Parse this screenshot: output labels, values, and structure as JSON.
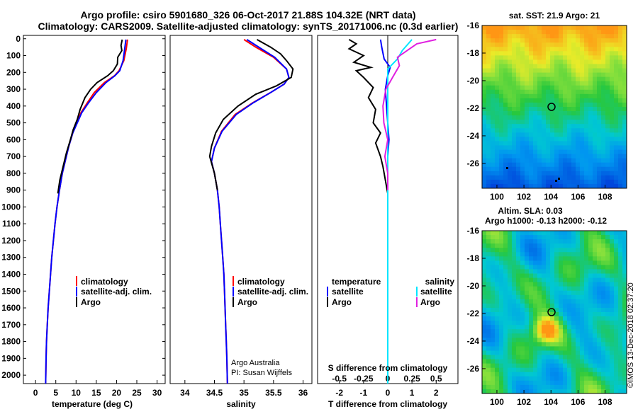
{
  "header": {
    "title_line1": "Argo profile: csiro 5901680_326 06-Oct-2017 21.88S 104.32E (NRT data)",
    "title_line2": "Climatology: CARS2009. Satellite-adjusted climatology: synTS_20171006.nc (0.3d earlier)"
  },
  "colors": {
    "climatology": "#ff0000",
    "satellite": "#0000ff",
    "argo": "#000000",
    "sat_diff": "#00e5ff",
    "argo_s_diff": "#e020e0"
  },
  "depth_axis": {
    "ticks": [
      "0",
      "100",
      "200",
      "300",
      "400",
      "500",
      "600",
      "700",
      "800",
      "900",
      "1000",
      "1100",
      "1200",
      "1300",
      "1400",
      "1500",
      "1600",
      "1700",
      "1800",
      "1900",
      "2000"
    ],
    "ylim": [
      2050,
      -20
    ]
  },
  "chart_data": [
    {
      "type": "line",
      "xlabel": "temperature (deg C)",
      "xticks": [
        "0",
        "5",
        "10",
        "15",
        "20",
        "25",
        "30"
      ],
      "xlim": [
        -3,
        32
      ],
      "legend": {
        "placement": "lower-middle",
        "labels": [
          "climatology",
          "satellite-adj. clim.",
          "Argo"
        ]
      },
      "series": [
        {
          "name": "climatology",
          "points": [
            [
              22.7,
              5
            ],
            [
              22.4,
              60
            ],
            [
              21.8,
              130
            ],
            [
              20.6,
              190
            ],
            [
              19.5,
              220
            ],
            [
              17.0,
              260
            ],
            [
              14.5,
              320
            ],
            [
              12.8,
              380
            ],
            [
              11.2,
              440
            ],
            [
              10.2,
              500
            ],
            [
              9.2,
              560
            ],
            [
              8.2,
              640
            ],
            [
              7.4,
              720
            ],
            [
              6.6,
              800
            ],
            [
              5.9,
              900
            ],
            [
              5.3,
              1000
            ],
            [
              4.8,
              1100
            ],
            [
              4.4,
              1200
            ],
            [
              4.0,
              1300
            ],
            [
              3.7,
              1400
            ],
            [
              3.4,
              1500
            ],
            [
              3.1,
              1600
            ],
            [
              2.9,
              1700
            ],
            [
              2.7,
              1800
            ],
            [
              2.6,
              1900
            ],
            [
              2.5,
              2050
            ]
          ]
        },
        {
          "name": "satellite-adj. clim.",
          "points": [
            [
              22.3,
              5
            ],
            [
              22.0,
              60
            ],
            [
              21.6,
              130
            ],
            [
              20.8,
              190
            ],
            [
              19.6,
              220
            ],
            [
              17.4,
              260
            ],
            [
              15.0,
              320
            ],
            [
              13.1,
              380
            ],
            [
              11.4,
              440
            ],
            [
              10.3,
              500
            ],
            [
              9.2,
              560
            ],
            [
              8.2,
              640
            ],
            [
              7.4,
              720
            ],
            [
              6.6,
              800
            ],
            [
              5.9,
              900
            ],
            [
              5.3,
              1000
            ],
            [
              4.8,
              1100
            ],
            [
              4.4,
              1200
            ],
            [
              4.0,
              1300
            ],
            [
              3.7,
              1400
            ],
            [
              3.4,
              1500
            ],
            [
              3.1,
              1600
            ],
            [
              2.9,
              1700
            ],
            [
              2.7,
              1800
            ],
            [
              2.6,
              1900
            ],
            [
              2.5,
              2050
            ]
          ]
        },
        {
          "name": "Argo",
          "points": [
            [
              21.4,
              5
            ],
            [
              21.1,
              40
            ],
            [
              21.3,
              70
            ],
            [
              20.3,
              110
            ],
            [
              20.2,
              150
            ],
            [
              19.2,
              190
            ],
            [
              17.8,
              220
            ],
            [
              15.2,
              260
            ],
            [
              13.6,
              300
            ],
            [
              12.2,
              350
            ],
            [
              11.0,
              420
            ],
            [
              10.3,
              480
            ],
            [
              9.3,
              540
            ],
            [
              8.6,
              600
            ],
            [
              7.6,
              680
            ],
            [
              6.8,
              760
            ],
            [
              6.0,
              840
            ],
            [
              5.5,
              920
            ]
          ]
        }
      ]
    },
    {
      "type": "line",
      "xlabel": "salinity",
      "xticks": [
        "34",
        "34.5",
        "35",
        "35.5",
        "36"
      ],
      "xlim": [
        33.75,
        36.15
      ],
      "legend": {
        "placement": "lower-middle",
        "labels": [
          "climatology",
          "satellite-adj. clim.",
          "Argo"
        ]
      },
      "credit": [
        "Argo Australia",
        "PI: Susan Wijffels"
      ],
      "series": [
        {
          "name": "climatology",
          "points": [
            [
              35.0,
              5
            ],
            [
              35.2,
              50
            ],
            [
              35.5,
              110
            ],
            [
              35.72,
              180
            ],
            [
              35.76,
              230
            ],
            [
              35.68,
              270
            ],
            [
              35.45,
              320
            ],
            [
              35.15,
              380
            ],
            [
              34.85,
              450
            ],
            [
              34.62,
              550
            ],
            [
              34.5,
              650
            ],
            [
              34.45,
              730
            ],
            [
              34.5,
              800
            ],
            [
              34.55,
              900
            ],
            [
              34.58,
              1000
            ],
            [
              34.6,
              1100
            ],
            [
              34.62,
              1200
            ],
            [
              34.64,
              1300
            ],
            [
              34.66,
              1400
            ],
            [
              34.67,
              1500
            ],
            [
              34.68,
              1600
            ],
            [
              34.69,
              1700
            ],
            [
              34.7,
              1800
            ],
            [
              34.71,
              1900
            ],
            [
              34.72,
              2050
            ]
          ]
        },
        {
          "name": "satellite-adj. clim.",
          "points": [
            [
              35.05,
              5
            ],
            [
              35.25,
              50
            ],
            [
              35.52,
              110
            ],
            [
              35.72,
              180
            ],
            [
              35.76,
              230
            ],
            [
              35.68,
              270
            ],
            [
              35.45,
              320
            ],
            [
              35.16,
              380
            ],
            [
              34.87,
              450
            ],
            [
              34.63,
              550
            ],
            [
              34.5,
              650
            ],
            [
              34.45,
              730
            ],
            [
              34.5,
              800
            ],
            [
              34.55,
              900
            ],
            [
              34.58,
              1000
            ],
            [
              34.6,
              1100
            ],
            [
              34.62,
              1200
            ],
            [
              34.64,
              1300
            ],
            [
              34.66,
              1400
            ],
            [
              34.67,
              1500
            ],
            [
              34.68,
              1600
            ],
            [
              34.69,
              1700
            ],
            [
              34.7,
              1800
            ],
            [
              34.71,
              1900
            ],
            [
              34.72,
              2050
            ]
          ]
        },
        {
          "name": "Argo",
          "points": [
            [
              35.22,
              5
            ],
            [
              35.45,
              50
            ],
            [
              35.62,
              90
            ],
            [
              35.72,
              130
            ],
            [
              35.83,
              180
            ],
            [
              35.8,
              230
            ],
            [
              35.55,
              280
            ],
            [
              35.2,
              330
            ],
            [
              34.9,
              400
            ],
            [
              34.65,
              480
            ],
            [
              34.52,
              560
            ],
            [
              34.45,
              640
            ],
            [
              34.42,
              700
            ],
            [
              34.5,
              800
            ],
            [
              34.55,
              900
            ]
          ]
        }
      ]
    },
    {
      "type": "line",
      "xlabel": "T difference from climatology",
      "x2label": "S difference from climatology",
      "xticks": [
        "-2",
        "-1",
        "0",
        "1",
        "2"
      ],
      "x2ticks": [
        "-0.5",
        "-0.25",
        "0",
        "0.25",
        "0.5"
      ],
      "xlim": [
        -2.9,
        2.9
      ],
      "x2lim": [
        -0.725,
        0.725
      ],
      "legend": {
        "placement": "lower",
        "left_title": "temperature",
        "right_title": "salinity",
        "labels_left": [
          "satellite",
          "Argo"
        ],
        "labels_right": [
          "satellite",
          "Argo"
        ]
      },
      "series": [
        {
          "name": "satellite",
          "group": "temperature",
          "points": [
            [
              -0.3,
              5
            ],
            [
              -0.25,
              50
            ],
            [
              -0.15,
              120
            ],
            [
              0.1,
              170
            ],
            [
              0.0,
              220
            ],
            [
              -0.1,
              300
            ],
            [
              -0.05,
              400
            ],
            [
              0.0,
              500
            ],
            [
              0.05,
              600
            ],
            [
              0.0,
              700
            ],
            [
              0.0,
              800
            ],
            [
              0.0,
              900
            ],
            [
              0.0,
              1000
            ],
            [
              0.0,
              1200
            ],
            [
              0.0,
              1400
            ],
            [
              0.0,
              1600
            ],
            [
              0.0,
              1800
            ],
            [
              0.0,
              2050
            ]
          ]
        },
        {
          "name": "Argo",
          "group": "temperature",
          "points": [
            [
              -1.6,
              5
            ],
            [
              -1.3,
              30
            ],
            [
              -1.6,
              60
            ],
            [
              -1.0,
              100
            ],
            [
              -1.4,
              140
            ],
            [
              -0.7,
              170
            ],
            [
              -1.3,
              190
            ],
            [
              -1.0,
              230
            ],
            [
              -0.6,
              290
            ],
            [
              -0.8,
              350
            ],
            [
              -0.5,
              420
            ],
            [
              -0.6,
              500
            ],
            [
              -0.3,
              560
            ],
            [
              -0.5,
              620
            ],
            [
              -0.3,
              700
            ],
            [
              -0.2,
              760
            ],
            [
              -0.1,
              840
            ],
            [
              0.0,
              920
            ]
          ]
        },
        {
          "name": "satellite",
          "group": "salinity",
          "points": [
            [
              0.25,
              5
            ],
            [
              0.15,
              70
            ],
            [
              0.1,
              120
            ],
            [
              0.0,
              180
            ],
            [
              0.0,
              230
            ],
            [
              0.0,
              300
            ],
            [
              0.0,
              400
            ],
            [
              0.0,
              500
            ],
            [
              0.0,
              600
            ],
            [
              0.0,
              700
            ],
            [
              0.0,
              800
            ],
            [
              0.0,
              900
            ],
            [
              0.0,
              1000
            ],
            [
              0.0,
              1200
            ],
            [
              0.0,
              1400
            ],
            [
              0.0,
              1600
            ],
            [
              0.0,
              1800
            ],
            [
              0.0,
              2050
            ]
          ]
        },
        {
          "name": "Argo",
          "group": "salinity",
          "points": [
            [
              0.5,
              5
            ],
            [
              0.3,
              30
            ],
            [
              0.2,
              70
            ],
            [
              0.1,
              110
            ],
            [
              0.12,
              160
            ],
            [
              0.05,
              230
            ],
            [
              -0.02,
              300
            ],
            [
              -0.05,
              400
            ],
            [
              -0.04,
              500
            ],
            [
              0.0,
              600
            ],
            [
              -0.03,
              700
            ],
            [
              0.0,
              800
            ],
            [
              0.0,
              900
            ]
          ]
        }
      ]
    }
  ],
  "sst_map": {
    "title": "sat. SST: 21.9 Argo: 21",
    "yticks": [
      "-16",
      "-18",
      "-20",
      "-22",
      "-24",
      "-26"
    ],
    "xticks": [
      "100",
      "102",
      "104",
      "106",
      "108"
    ]
  },
  "sla_map": {
    "title1": "Altim. SLA: 0.03",
    "title2": "Argo h1000: -0.13 h2000: -0.12",
    "yticks": [
      "-16",
      "-18",
      "-20",
      "-22",
      "-24",
      "-26"
    ],
    "xticks": [
      "100",
      "102",
      "104",
      "106",
      "108"
    ]
  },
  "footer_stamp": "©IMOS 13-Dec-2018 02:37:20"
}
